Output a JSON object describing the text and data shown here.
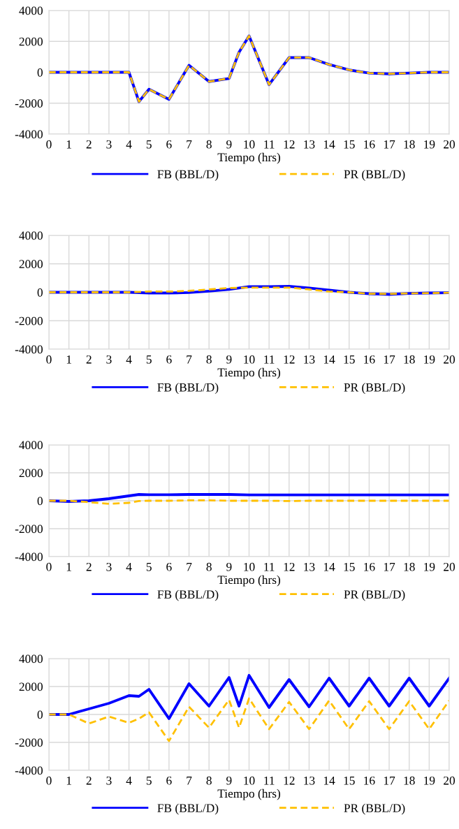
{
  "chart_data": [
    {
      "type": "line",
      "xlabel": "Tiempo (hrs)",
      "xlim": [
        0,
        20
      ],
      "xticks": [
        0,
        1,
        2,
        3,
        4,
        5,
        6,
        7,
        8,
        9,
        10,
        11,
        12,
        13,
        14,
        15,
        16,
        17,
        18,
        19,
        20
      ],
      "ylim": [
        -4000,
        4000
      ],
      "yticks": [
        -4000,
        -2000,
        0,
        2000,
        4000
      ],
      "grid": true,
      "legend": "bottom",
      "series": [
        {
          "name": "FB (BBL/D)",
          "color": "#0000ff",
          "line_style": "solid",
          "x": [
            0,
            1,
            2,
            3,
            4,
            4.5,
            5,
            6,
            7,
            8,
            9,
            9.5,
            10,
            11,
            12,
            13,
            14,
            15,
            16,
            17,
            18,
            19,
            20
          ],
          "values": [
            0,
            0,
            0,
            0,
            0,
            -1900,
            -1100,
            -1750,
            450,
            -600,
            -400,
            1300,
            2350,
            -800,
            950,
            950,
            500,
            150,
            -50,
            -100,
            -50,
            0,
            0
          ]
        },
        {
          "name": "PR (BBL/D)",
          "color": "#ffc000",
          "line_style": "dashed",
          "x": [
            0,
            1,
            2,
            3,
            4,
            4.5,
            5,
            6,
            7,
            8,
            9,
            9.5,
            10,
            11,
            12,
            13,
            14,
            15,
            16,
            17,
            18,
            19,
            20
          ],
          "values": [
            0,
            0,
            0,
            0,
            0,
            -1900,
            -1100,
            -1750,
            450,
            -600,
            -400,
            1300,
            2350,
            -800,
            950,
            950,
            500,
            150,
            -50,
            -100,
            -50,
            0,
            0
          ]
        }
      ]
    },
    {
      "type": "line",
      "xlabel": "Tiempo (hrs)",
      "xlim": [
        0,
        20
      ],
      "xticks": [
        0,
        1,
        2,
        3,
        4,
        5,
        6,
        7,
        8,
        9,
        10,
        11,
        12,
        13,
        14,
        15,
        16,
        17,
        18,
        19,
        20
      ],
      "ylim": [
        -4000,
        4000
      ],
      "yticks": [
        -4000,
        -2000,
        0,
        2000,
        4000
      ],
      "grid": true,
      "legend": "bottom",
      "series": [
        {
          "name": "FB (BBL/D)",
          "color": "#0000ff",
          "line_style": "solid",
          "x": [
            0,
            1,
            2,
            3,
            4,
            5,
            6,
            7,
            8,
            9,
            10,
            11,
            12,
            13,
            14,
            15,
            16,
            17,
            18,
            19,
            20
          ],
          "values": [
            0,
            0,
            0,
            0,
            0,
            -50,
            -50,
            -20,
            80,
            200,
            400,
            400,
            420,
            300,
            150,
            0,
            -100,
            -150,
            -80,
            -50,
            -30
          ]
        },
        {
          "name": "PR (BBL/D)",
          "color": "#ffc000",
          "line_style": "dashed",
          "x": [
            0,
            1,
            2,
            3,
            4,
            5,
            6,
            7,
            8,
            9,
            10,
            11,
            12,
            13,
            14,
            15,
            16,
            17,
            18,
            19,
            20
          ],
          "values": [
            0,
            0,
            0,
            0,
            0,
            50,
            50,
            100,
            200,
            300,
            330,
            330,
            330,
            200,
            50,
            0,
            -100,
            -120,
            -80,
            -60,
            -30
          ]
        }
      ]
    },
    {
      "type": "line",
      "xlabel": "Tiempo (hrs)",
      "xlim": [
        0,
        20
      ],
      "xticks": [
        0,
        1,
        2,
        3,
        4,
        5,
        6,
        7,
        8,
        9,
        10,
        11,
        12,
        13,
        14,
        15,
        16,
        17,
        18,
        19,
        20
      ],
      "ylim": [
        -4000,
        4000
      ],
      "yticks": [
        -4000,
        -2000,
        0,
        2000,
        4000
      ],
      "grid": true,
      "legend": "bottom",
      "series": [
        {
          "name": "FB (BBL/D)",
          "color": "#0000ff",
          "line_style": "solid",
          "x": [
            0,
            1,
            2,
            3,
            4,
            4.5,
            5,
            6,
            7,
            8,
            9,
            10,
            11,
            12,
            13,
            14,
            15,
            16,
            17,
            18,
            19,
            20
          ],
          "values": [
            0,
            -50,
            0,
            150,
            350,
            450,
            430,
            430,
            450,
            450,
            450,
            420,
            420,
            420,
            420,
            420,
            420,
            420,
            420,
            420,
            420,
            420
          ]
        },
        {
          "name": "PR (BBL/D)",
          "color": "#ffc000",
          "line_style": "dashed",
          "x": [
            0,
            1,
            2,
            3,
            4,
            4.5,
            5,
            6,
            7,
            8,
            9,
            10,
            11,
            12,
            13,
            14,
            15,
            16,
            17,
            18,
            19,
            20
          ],
          "values": [
            0,
            0,
            -100,
            -220,
            -150,
            -20,
            0,
            0,
            30,
            30,
            0,
            0,
            0,
            -20,
            0,
            0,
            0,
            0,
            0,
            0,
            0,
            0
          ]
        }
      ]
    },
    {
      "type": "line",
      "xlabel": "Tiempo (hrs)",
      "xlim": [
        0,
        20
      ],
      "xticks": [
        0,
        1,
        2,
        3,
        4,
        5,
        6,
        7,
        8,
        9,
        10,
        11,
        12,
        13,
        14,
        15,
        16,
        17,
        18,
        19,
        20
      ],
      "ylim": [
        -4000,
        4000
      ],
      "yticks": [
        -4000,
        -2000,
        0,
        2000,
        4000
      ],
      "grid": true,
      "legend": "bottom",
      "series": [
        {
          "name": "FB (BBL/D)",
          "color": "#0000ff",
          "line_style": "solid",
          "x": [
            0,
            1,
            2,
            3,
            4,
            4.5,
            5,
            6,
            7,
            8,
            9,
            9.5,
            10,
            11,
            12,
            13,
            14,
            15,
            16,
            17,
            18,
            19,
            20
          ],
          "values": [
            0,
            0,
            400,
            800,
            1350,
            1300,
            1800,
            -300,
            2200,
            600,
            2650,
            600,
            2800,
            500,
            2500,
            550,
            2600,
            600,
            2600,
            600,
            2600,
            600,
            2600
          ]
        },
        {
          "name": "PR (BBL/D)",
          "color": "#ffc000",
          "line_style": "dashed",
          "x": [
            0,
            1,
            2,
            3,
            4,
            4.5,
            5,
            6,
            7,
            8,
            9,
            9.5,
            10,
            11,
            12,
            13,
            14,
            15,
            16,
            17,
            18,
            19,
            20
          ],
          "values": [
            0,
            0,
            -650,
            -150,
            -600,
            -300,
            150,
            -1900,
            550,
            -950,
            1050,
            -950,
            1150,
            -1050,
            900,
            -1050,
            1000,
            -1050,
            950,
            -1050,
            950,
            -1050,
            1000
          ]
        }
      ]
    }
  ]
}
